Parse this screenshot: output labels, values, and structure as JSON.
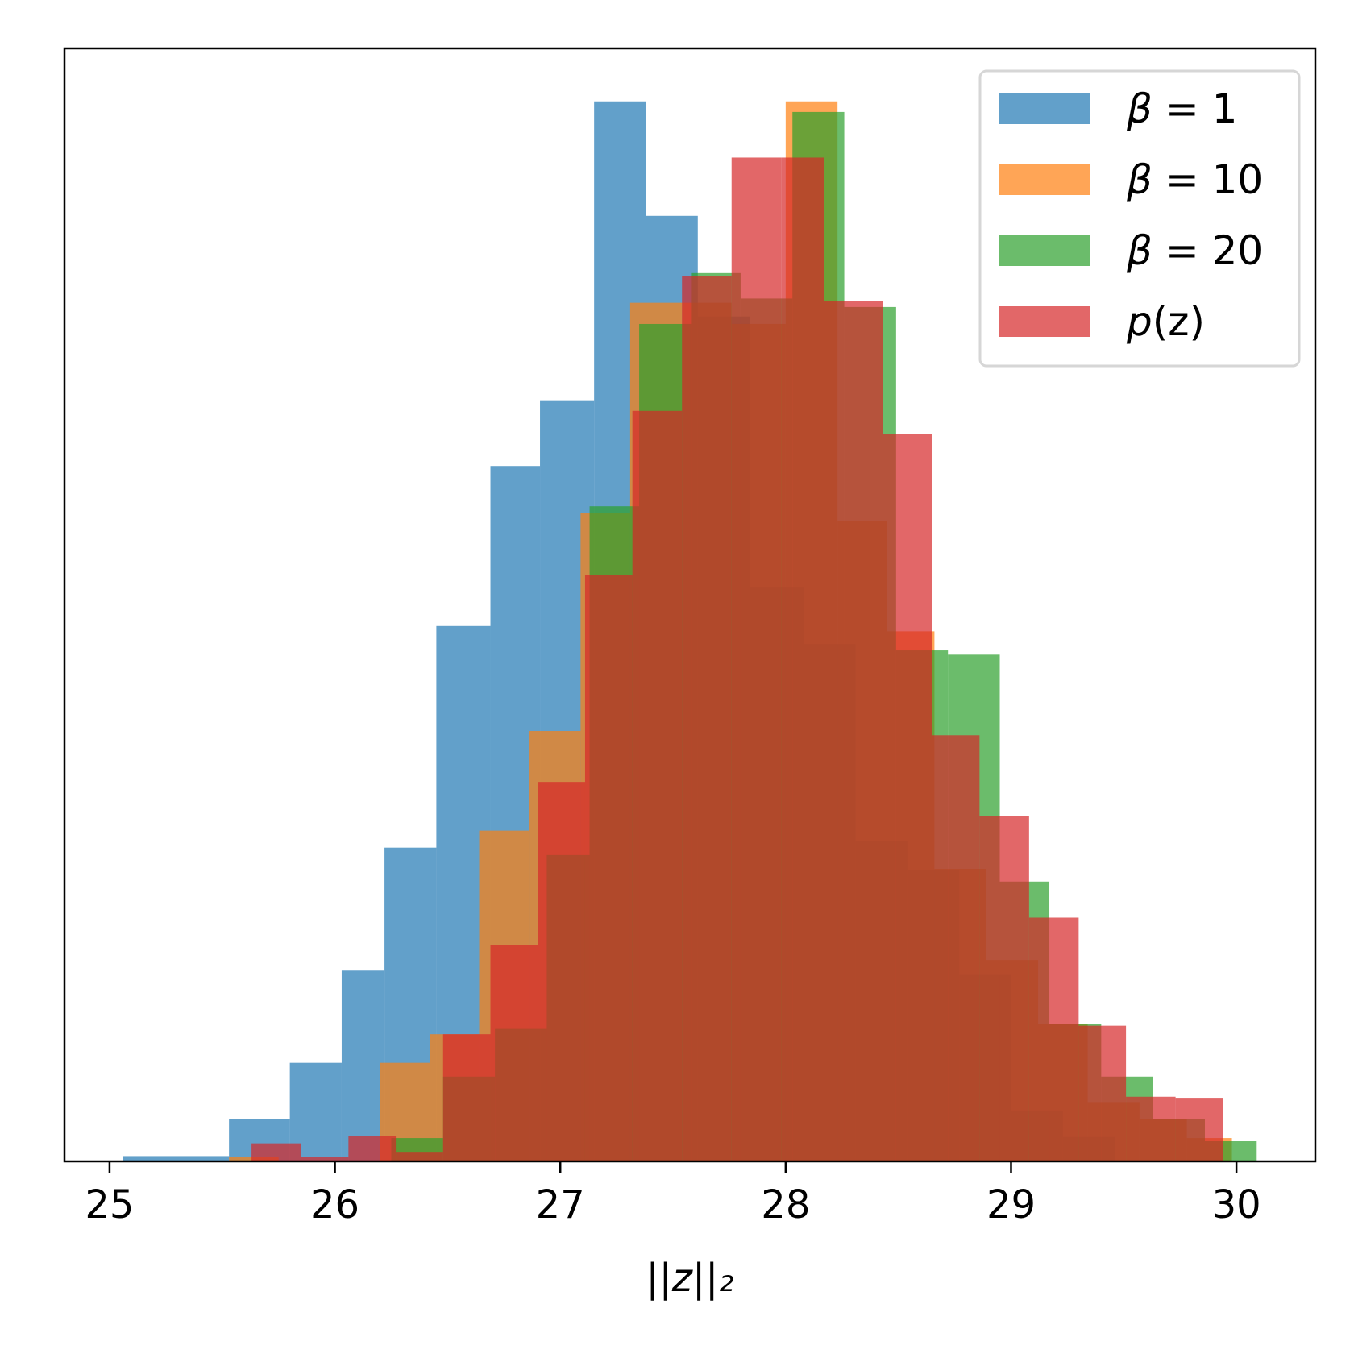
{
  "chart_data": {
    "type": "histogram",
    "title": "",
    "xlabel": "||z||₂",
    "ylabel": "",
    "xlim": [
      24.8,
      30.35
    ],
    "ylim": [
      0,
      1.05
    ],
    "y_ticks_shown": false,
    "x_ticks": [
      25,
      26,
      27,
      28,
      29,
      30
    ],
    "grid": false,
    "legend": "top-right",
    "series": [
      {
        "name": "β = 1",
        "label_prefix": "β",
        "label_rest": " = 1",
        "color": "#1f77b4",
        "alpha": 0.7,
        "bins": [
          [
            25.06,
            25.53,
            0.005
          ],
          [
            25.53,
            25.8,
            0.04
          ],
          [
            25.8,
            26.03,
            0.093
          ],
          [
            26.03,
            26.22,
            0.18
          ],
          [
            26.22,
            26.45,
            0.296
          ],
          [
            26.45,
            26.69,
            0.505
          ],
          [
            26.69,
            26.91,
            0.656
          ],
          [
            26.91,
            27.15,
            0.718
          ],
          [
            27.15,
            27.38,
            1.0
          ],
          [
            27.38,
            27.61,
            0.892
          ],
          [
            27.61,
            27.84,
            0.797
          ],
          [
            27.84,
            28.08,
            0.542
          ],
          [
            28.08,
            28.31,
            0.488
          ],
          [
            28.31,
            28.54,
            0.302
          ],
          [
            28.54,
            28.77,
            0.275
          ],
          [
            28.77,
            29.0,
            0.176
          ],
          [
            29.0,
            29.23,
            0.048
          ],
          [
            29.23,
            29.46,
            0.023
          ]
        ]
      },
      {
        "name": "β = 10",
        "label_prefix": "β",
        "label_rest": " = 10",
        "color": "#ff7f0e",
        "alpha": 0.7,
        "bins": [
          [
            25.53,
            25.75,
            0.004
          ],
          [
            26.2,
            26.42,
            0.093
          ],
          [
            26.42,
            26.64,
            0.12
          ],
          [
            26.64,
            26.86,
            0.312
          ],
          [
            26.86,
            27.09,
            0.406
          ],
          [
            27.09,
            27.31,
            0.612
          ],
          [
            27.31,
            27.54,
            0.81
          ],
          [
            27.54,
            27.76,
            0.81
          ],
          [
            27.76,
            28.0,
            0.79
          ],
          [
            28.0,
            28.23,
            1.0
          ],
          [
            28.23,
            28.45,
            0.604
          ],
          [
            28.45,
            28.66,
            0.5
          ],
          [
            28.66,
            28.89,
            0.276
          ],
          [
            28.89,
            29.12,
            0.19
          ],
          [
            29.12,
            29.34,
            0.13
          ],
          [
            29.34,
            29.57,
            0.056
          ],
          [
            29.57,
            29.78,
            0.04
          ],
          [
            29.78,
            29.98,
            0.022
          ]
        ]
      },
      {
        "name": "β = 20",
        "label_prefix": "β",
        "label_rest": " = 20",
        "color": "#2ca02c",
        "alpha": 0.7,
        "bins": [
          [
            26.25,
            26.48,
            0.022
          ],
          [
            26.48,
            26.71,
            0.08
          ],
          [
            26.71,
            26.94,
            0.125
          ],
          [
            26.94,
            27.13,
            0.289
          ],
          [
            27.13,
            27.35,
            0.618
          ],
          [
            27.35,
            27.58,
            0.79
          ],
          [
            27.58,
            27.8,
            0.838
          ],
          [
            27.8,
            28.03,
            0.814
          ],
          [
            28.03,
            28.26,
            0.99
          ],
          [
            28.26,
            28.49,
            0.806
          ],
          [
            28.49,
            28.72,
            0.482
          ],
          [
            28.72,
            28.95,
            0.478
          ],
          [
            28.95,
            29.17,
            0.264
          ],
          [
            29.17,
            29.4,
            0.13
          ],
          [
            29.4,
            29.63,
            0.08
          ],
          [
            29.63,
            29.86,
            0.04
          ],
          [
            29.86,
            30.09,
            0.019
          ]
        ]
      },
      {
        "name": "p(z)",
        "label_prefix": "p",
        "label_rest": "(z)",
        "color": "#d62728",
        "alpha": 0.7,
        "bins": [
          [
            25.63,
            25.85,
            0.017
          ],
          [
            25.85,
            26.06,
            0.004
          ],
          [
            26.06,
            26.27,
            0.024
          ],
          [
            26.27,
            26.48,
            0.009
          ],
          [
            26.48,
            26.69,
            0.12
          ],
          [
            26.69,
            26.9,
            0.204
          ],
          [
            26.9,
            27.11,
            0.358
          ],
          [
            27.11,
            27.32,
            0.553
          ],
          [
            27.32,
            27.54,
            0.708
          ],
          [
            27.54,
            27.76,
            0.835
          ],
          [
            27.76,
            27.98,
            0.947
          ],
          [
            27.98,
            28.17,
            0.947
          ],
          [
            28.17,
            28.43,
            0.812
          ],
          [
            28.43,
            28.65,
            0.686
          ],
          [
            28.65,
            28.86,
            0.402
          ],
          [
            28.86,
            29.08,
            0.326
          ],
          [
            29.08,
            29.3,
            0.23
          ],
          [
            29.3,
            29.51,
            0.128
          ],
          [
            29.51,
            29.73,
            0.061
          ],
          [
            29.73,
            29.94,
            0.06
          ]
        ]
      }
    ]
  }
}
